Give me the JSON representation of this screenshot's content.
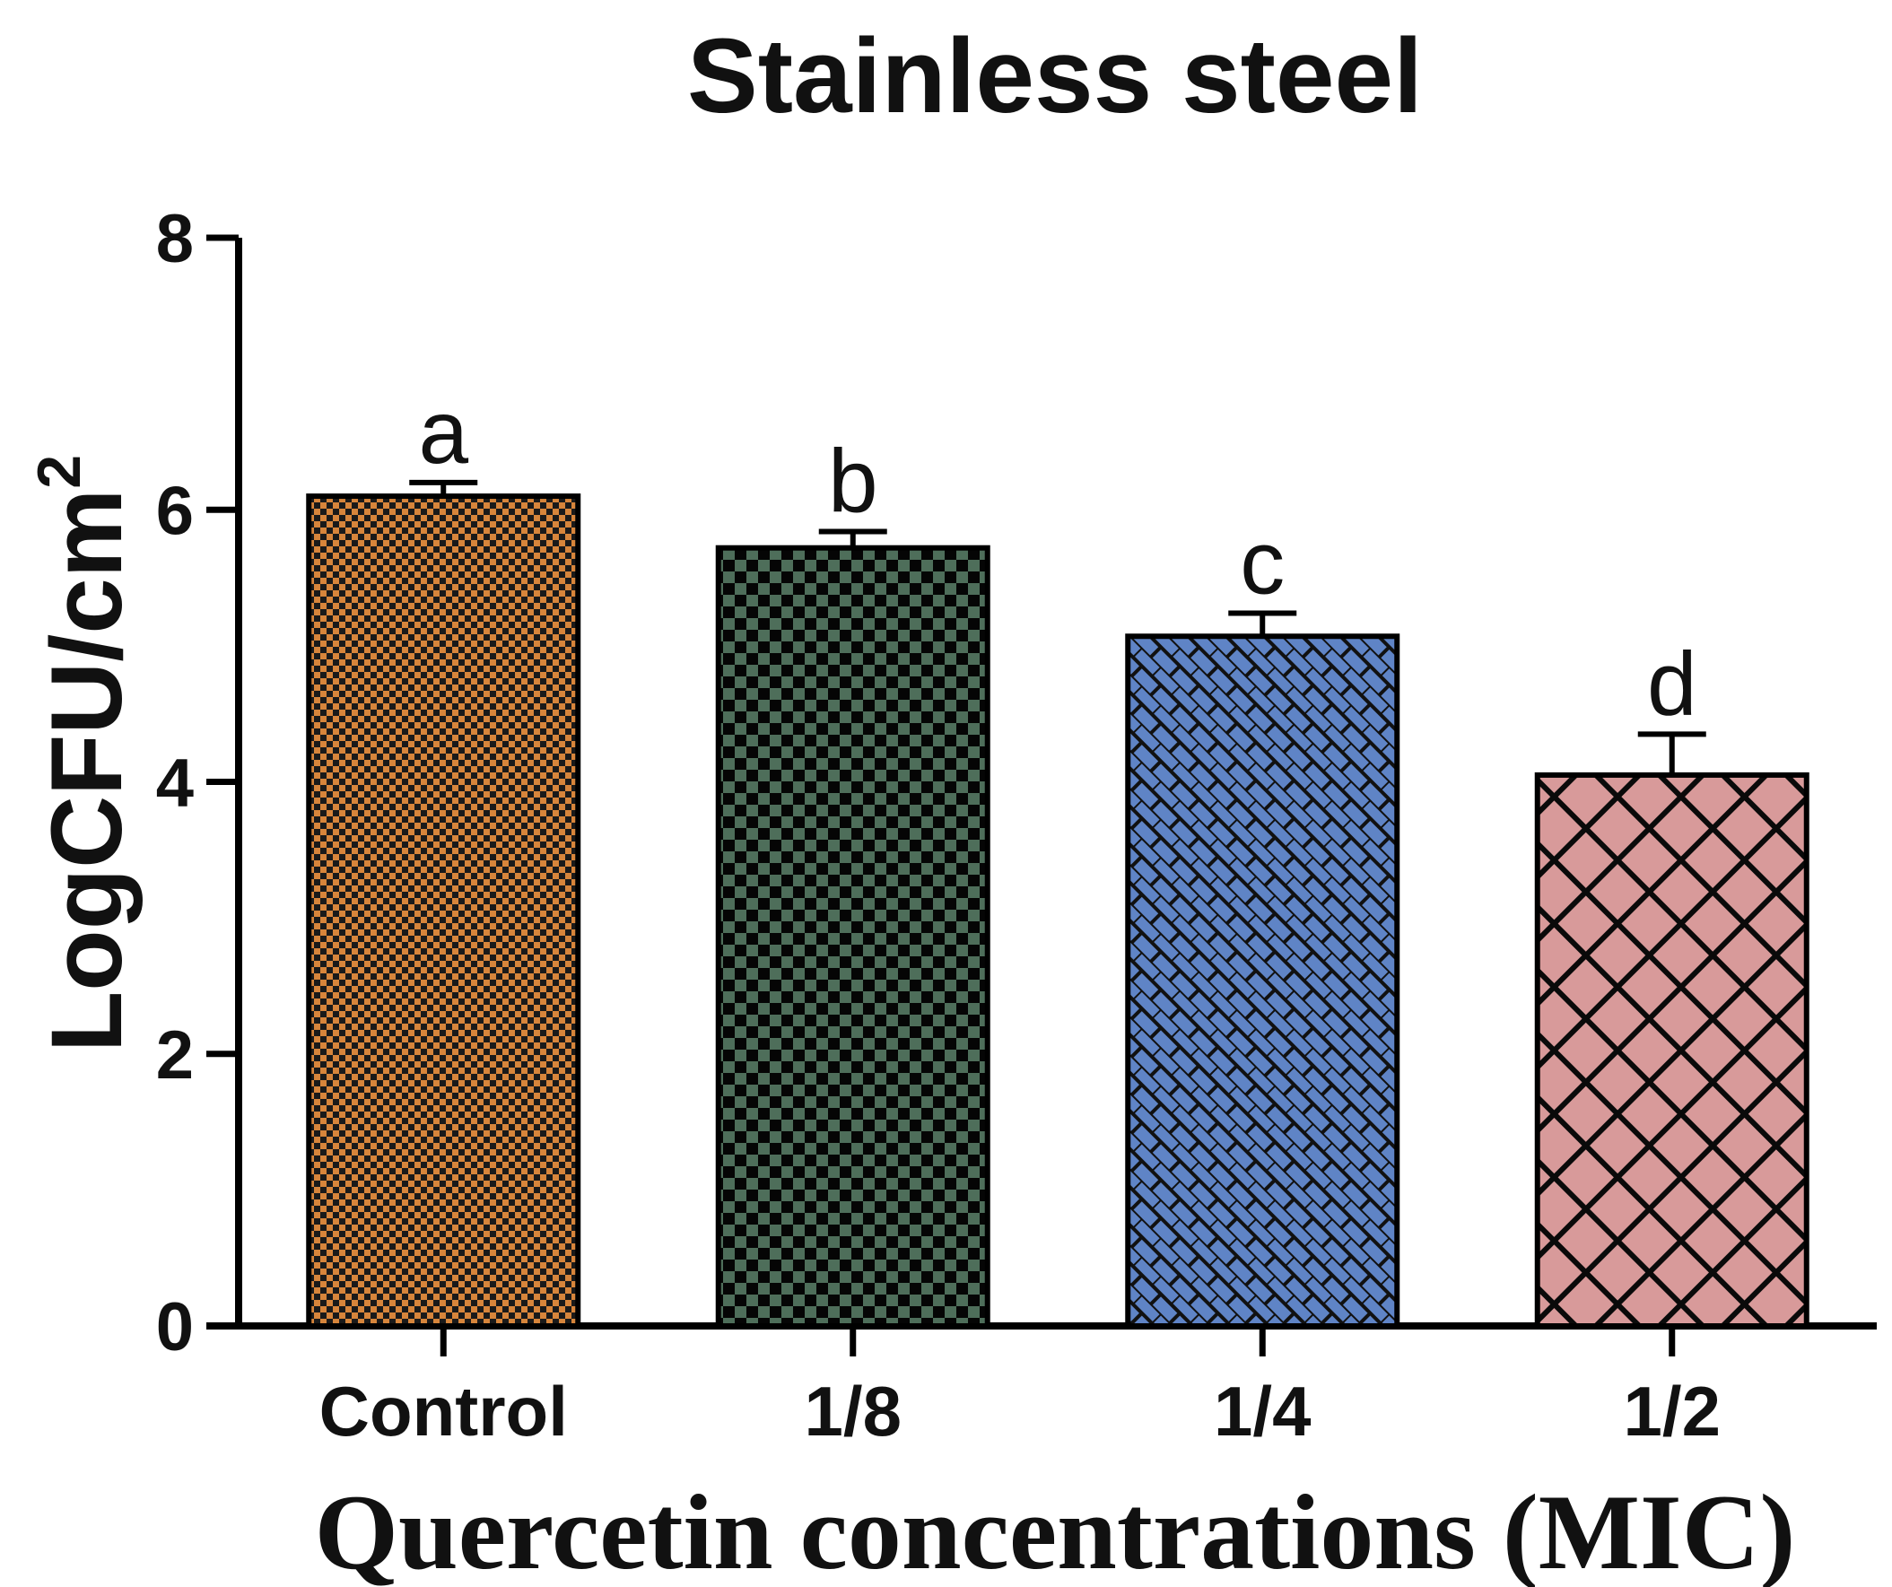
{
  "chart_data": {
    "type": "bar",
    "title": "Stainless steel",
    "xlabel": "Quercetin concentrations (MIC)",
    "ylabel": "LogCFU/cm",
    "ylabel_superscript": "2",
    "ylim": [
      0,
      8
    ],
    "yticks": [
      "0",
      "2",
      "4",
      "6",
      "8"
    ],
    "categories": [
      "Control",
      "1/8",
      "1/4",
      "1/2"
    ],
    "values": [
      6.1,
      5.72,
      5.07,
      4.05
    ],
    "errors": [
      0.1,
      0.12,
      0.17,
      0.3
    ],
    "significance_labels": [
      "a",
      "b",
      "c",
      "d"
    ],
    "bar_colors": [
      "#d7853b",
      "#4e6e5a",
      "#5f84c6",
      "#d89a9a"
    ],
    "bar_patterns": [
      "fine-checker",
      "checker",
      "diagonal-weave",
      "crosshatch"
    ]
  }
}
